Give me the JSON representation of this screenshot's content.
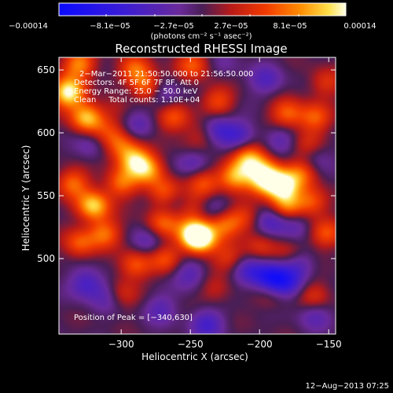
{
  "chart_data": {
    "type": "heatmap",
    "title": "Reconstructed RHESSI Image",
    "xlabel": "Heliocentric X (arcsec)",
    "ylabel": "Heliocentric Y (arcsec)",
    "xlim": [
      -345,
      -145
    ],
    "ylim": [
      440,
      660
    ],
    "x_ticks": [
      -300,
      -250,
      -200,
      -150
    ],
    "x_tick_labels": [
      "−300",
      "−250",
      "−200",
      "−150"
    ],
    "y_ticks": [
      500,
      550,
      600,
      650
    ],
    "y_tick_labels": [
      "500",
      "550",
      "600",
      "650"
    ],
    "colorbar": {
      "range": [
        -0.00014,
        0.00014
      ],
      "tick_labels": [
        "−0.00014",
        "−8.1e−05",
        "−2.7e−05",
        "2.7e−05",
        "8.1e−05",
        "0.00014"
      ],
      "unit_text": "(photons cm⁻² s⁻¹ asec⁻²)"
    },
    "annotations": {
      "time": "2−Mar−2011 21:50:50.000 to 21:56:50.000",
      "detectors": "Detectors: 4F 5F 6F 7F 8F, Att 0",
      "energy": "Energy Range: 25.0 − 50.0 keV",
      "method": "Clean     Total counts: 1.10E+04",
      "peak": "Position of Peak = [−340,630]"
    },
    "peak_position": [
      -340,
      630
    ],
    "sources": [
      {
        "x": -338,
        "y": 632,
        "v": 1.0
      },
      {
        "x": -325,
        "y": 612,
        "v": 0.8
      },
      {
        "x": -330,
        "y": 655,
        "v": 0.65
      },
      {
        "x": -290,
        "y": 650,
        "v": 0.55
      },
      {
        "x": -282,
        "y": 636,
        "v": 0.6
      },
      {
        "x": -248,
        "y": 654,
        "v": 0.5
      },
      {
        "x": -230,
        "y": 625,
        "v": 0.45
      },
      {
        "x": -262,
        "y": 612,
        "v": 0.5
      },
      {
        "x": -240,
        "y": 600,
        "v": 0.35
      },
      {
        "x": -180,
        "y": 615,
        "v": 0.55
      },
      {
        "x": -160,
        "y": 612,
        "v": 0.5
      },
      {
        "x": -152,
        "y": 640,
        "v": 0.35
      },
      {
        "x": -300,
        "y": 590,
        "v": 0.5
      },
      {
        "x": -290,
        "y": 578,
        "v": 0.75
      },
      {
        "x": -280,
        "y": 570,
        "v": 0.6
      },
      {
        "x": -300,
        "y": 560,
        "v": 0.55
      },
      {
        "x": -320,
        "y": 542,
        "v": 0.85
      },
      {
        "x": -335,
        "y": 560,
        "v": 0.55
      },
      {
        "x": -268,
        "y": 552,
        "v": 0.55
      },
      {
        "x": -240,
        "y": 560,
        "v": 0.5
      },
      {
        "x": -218,
        "y": 565,
        "v": 0.7
      },
      {
        "x": -208,
        "y": 580,
        "v": 0.7
      },
      {
        "x": -196,
        "y": 570,
        "v": 0.55
      },
      {
        "x": -184,
        "y": 558,
        "v": 0.95
      },
      {
        "x": -170,
        "y": 568,
        "v": 0.5
      },
      {
        "x": -180,
        "y": 542,
        "v": 0.6
      },
      {
        "x": -162,
        "y": 545,
        "v": 0.5
      },
      {
        "x": -152,
        "y": 520,
        "v": 0.45
      },
      {
        "x": -250,
        "y": 540,
        "v": 0.35
      },
      {
        "x": -270,
        "y": 528,
        "v": 0.5
      },
      {
        "x": -248,
        "y": 520,
        "v": 0.7
      },
      {
        "x": -243,
        "y": 516,
        "v": 0.95
      },
      {
        "x": -225,
        "y": 528,
        "v": 0.55
      },
      {
        "x": -210,
        "y": 532,
        "v": 0.35
      },
      {
        "x": -330,
        "y": 512,
        "v": 0.5
      },
      {
        "x": -312,
        "y": 520,
        "v": 0.55
      },
      {
        "x": -290,
        "y": 495,
        "v": 0.5
      },
      {
        "x": -300,
        "y": 472,
        "v": 0.35
      },
      {
        "x": -268,
        "y": 500,
        "v": 0.45
      },
      {
        "x": -222,
        "y": 500,
        "v": 0.4
      },
      {
        "x": -200,
        "y": 510,
        "v": 0.3
      },
      {
        "x": -178,
        "y": 505,
        "v": 0.3
      },
      {
        "x": -160,
        "y": 470,
        "v": 0.35
      },
      {
        "x": -232,
        "y": 475,
        "v": 0.25
      },
      {
        "x": -192,
        "y": 470,
        "v": 0.2
      },
      {
        "x": -198,
        "y": 560,
        "v": 0.6
      },
      {
        "x": -165,
        "y": 590,
        "v": 0.3
      },
      {
        "x": -310,
        "y": 600,
        "v": 0.3
      },
      {
        "x": -250,
        "y": 585,
        "v": 0.2
      },
      {
        "x": -300,
        "y": 622,
        "v": 0.25
      },
      {
        "x": -295,
        "y": 630,
        "v": -0.25
      },
      {
        "x": -270,
        "y": 630,
        "v": -0.35
      },
      {
        "x": -288,
        "y": 604,
        "v": -0.3
      },
      {
        "x": -232,
        "y": 603,
        "v": -0.55
      },
      {
        "x": -215,
        "y": 598,
        "v": -0.4
      },
      {
        "x": -195,
        "y": 642,
        "v": -0.35
      },
      {
        "x": -185,
        "y": 595,
        "v": -0.3
      },
      {
        "x": -160,
        "y": 580,
        "v": -0.25
      },
      {
        "x": -322,
        "y": 590,
        "v": -0.25
      },
      {
        "x": -248,
        "y": 578,
        "v": -0.45
      },
      {
        "x": -260,
        "y": 545,
        "v": -0.3
      },
      {
        "x": -280,
        "y": 513,
        "v": -0.3
      },
      {
        "x": -230,
        "y": 540,
        "v": -0.3
      },
      {
        "x": -192,
        "y": 530,
        "v": -0.45
      },
      {
        "x": -175,
        "y": 527,
        "v": -0.3
      },
      {
        "x": -208,
        "y": 490,
        "v": -0.45
      },
      {
        "x": -192,
        "y": 485,
        "v": -0.7
      },
      {
        "x": -180,
        "y": 480,
        "v": -0.5
      },
      {
        "x": -325,
        "y": 480,
        "v": -0.45
      },
      {
        "x": -310,
        "y": 470,
        "v": -0.3
      },
      {
        "x": -250,
        "y": 488,
        "v": -0.35
      },
      {
        "x": -238,
        "y": 448,
        "v": -0.45
      },
      {
        "x": -272,
        "y": 460,
        "v": -0.3
      },
      {
        "x": -160,
        "y": 455,
        "v": -0.3
      },
      {
        "x": -172,
        "y": 496,
        "v": -0.35
      },
      {
        "x": -225,
        "y": 655,
        "v": -0.15
      }
    ]
  },
  "footer": {
    "timestamp": "12−Aug−2013 07:25"
  }
}
